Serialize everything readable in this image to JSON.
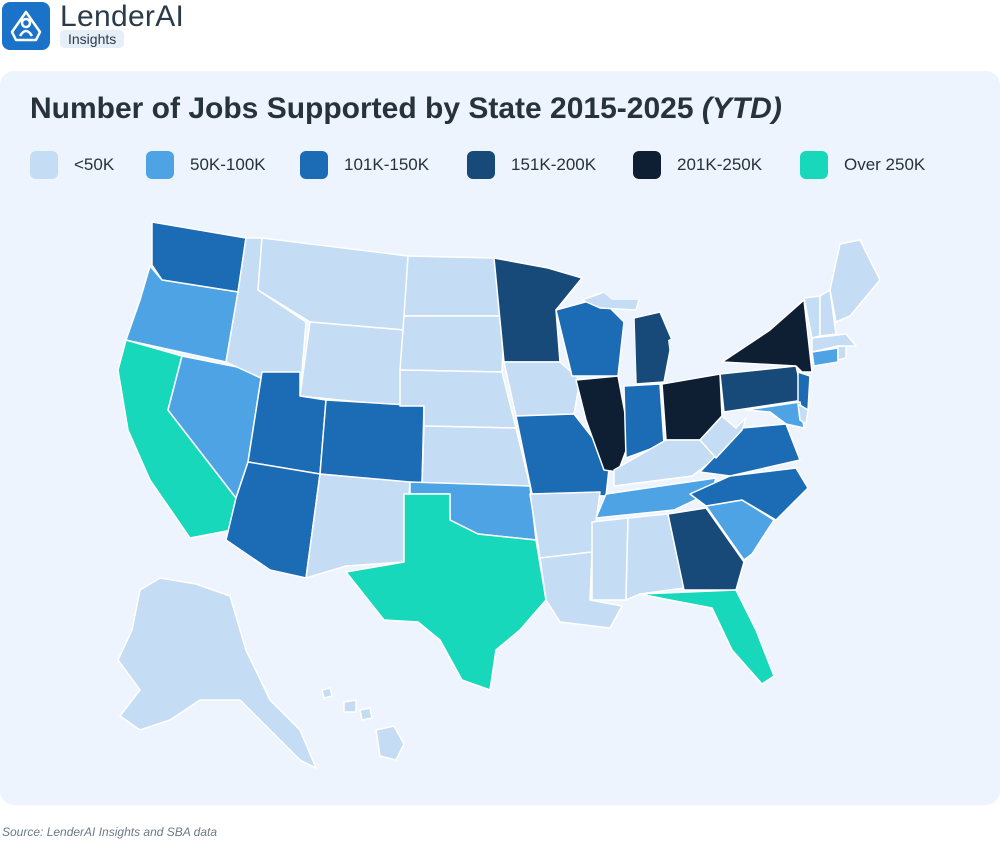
{
  "brand": {
    "name": "LenderAI",
    "tag": "Insights",
    "logo_icon": "logo-person-icon",
    "accent": "#1a73c9"
  },
  "title": {
    "main": "Number of Jobs Supported by State 2015-2025",
    "suffix": "(YTD)"
  },
  "legend": [
    {
      "label": "<50K",
      "color": "#c4dcf4"
    },
    {
      "label": "50K-100K",
      "color": "#4ea3e4"
    },
    {
      "label": "101K-150K",
      "color": "#1b6bb5"
    },
    {
      "label": "151K-200K",
      "color": "#174a78"
    },
    {
      "label": "201K-250K",
      "color": "#0e1f33"
    },
    {
      "label": "Over 250K",
      "color": "#17d8bb"
    }
  ],
  "map_data": {
    "type": "choropleth",
    "region": "United States",
    "states": {
      "WA": "101K-150K",
      "OR": "50K-100K",
      "CA": "Over 250K",
      "NV": "50K-100K",
      "ID": "<50K",
      "MT": "<50K",
      "WY": "<50K",
      "UT": "101K-150K",
      "AZ": "101K-150K",
      "CO": "101K-150K",
      "NM": "<50K",
      "ND": "<50K",
      "SD": "<50K",
      "NE": "<50K",
      "KS": "<50K",
      "OK": "50K-100K",
      "TX": "Over 250K",
      "MN": "151K-200K",
      "IA": "<50K",
      "MO": "101K-150K",
      "AR": "<50K",
      "LA": "<50K",
      "WI": "101K-150K",
      "IL": "201K-250K",
      "MI": "151K-200K",
      "IN": "101K-150K",
      "OH": "201K-250K",
      "KY": "<50K",
      "TN": "50K-100K",
      "MS": "<50K",
      "AL": "<50K",
      "GA": "151K-200K",
      "FL": "Over 250K",
      "SC": "50K-100K",
      "NC": "101K-150K",
      "VA": "101K-150K",
      "WV": "<50K",
      "PA": "151K-200K",
      "NY": "201K-250K",
      "NJ": "101K-150K",
      "MD": "50K-100K",
      "DE": "<50K",
      "CT": "50K-100K",
      "RI": "<50K",
      "MA": "<50K",
      "VT": "<50K",
      "NH": "<50K",
      "ME": "<50K",
      "AK": "<50K",
      "HI": "<50K"
    }
  },
  "source": "Source: LenderAI Insights and SBA data"
}
